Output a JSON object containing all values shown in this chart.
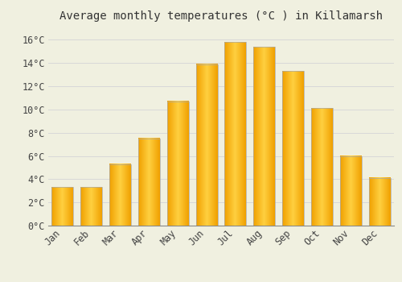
{
  "title": "Average monthly temperatures (°C ) in Killamarsh",
  "months": [
    "Jan",
    "Feb",
    "Mar",
    "Apr",
    "May",
    "Jun",
    "Jul",
    "Aug",
    "Sep",
    "Oct",
    "Nov",
    "Dec"
  ],
  "temperatures": [
    3.3,
    3.3,
    5.3,
    7.5,
    10.7,
    13.9,
    15.8,
    15.4,
    13.3,
    10.1,
    6.0,
    4.1
  ],
  "bar_color_center": "#FFD040",
  "bar_color_edge": "#F0A000",
  "background_color": "#F0F0E0",
  "grid_color": "#D8D8D8",
  "ylim": [
    0,
    17
  ],
  "yticks": [
    0,
    2,
    4,
    6,
    8,
    10,
    12,
    14,
    16
  ],
  "title_fontsize": 10,
  "tick_fontsize": 8.5,
  "bar_width": 0.75
}
